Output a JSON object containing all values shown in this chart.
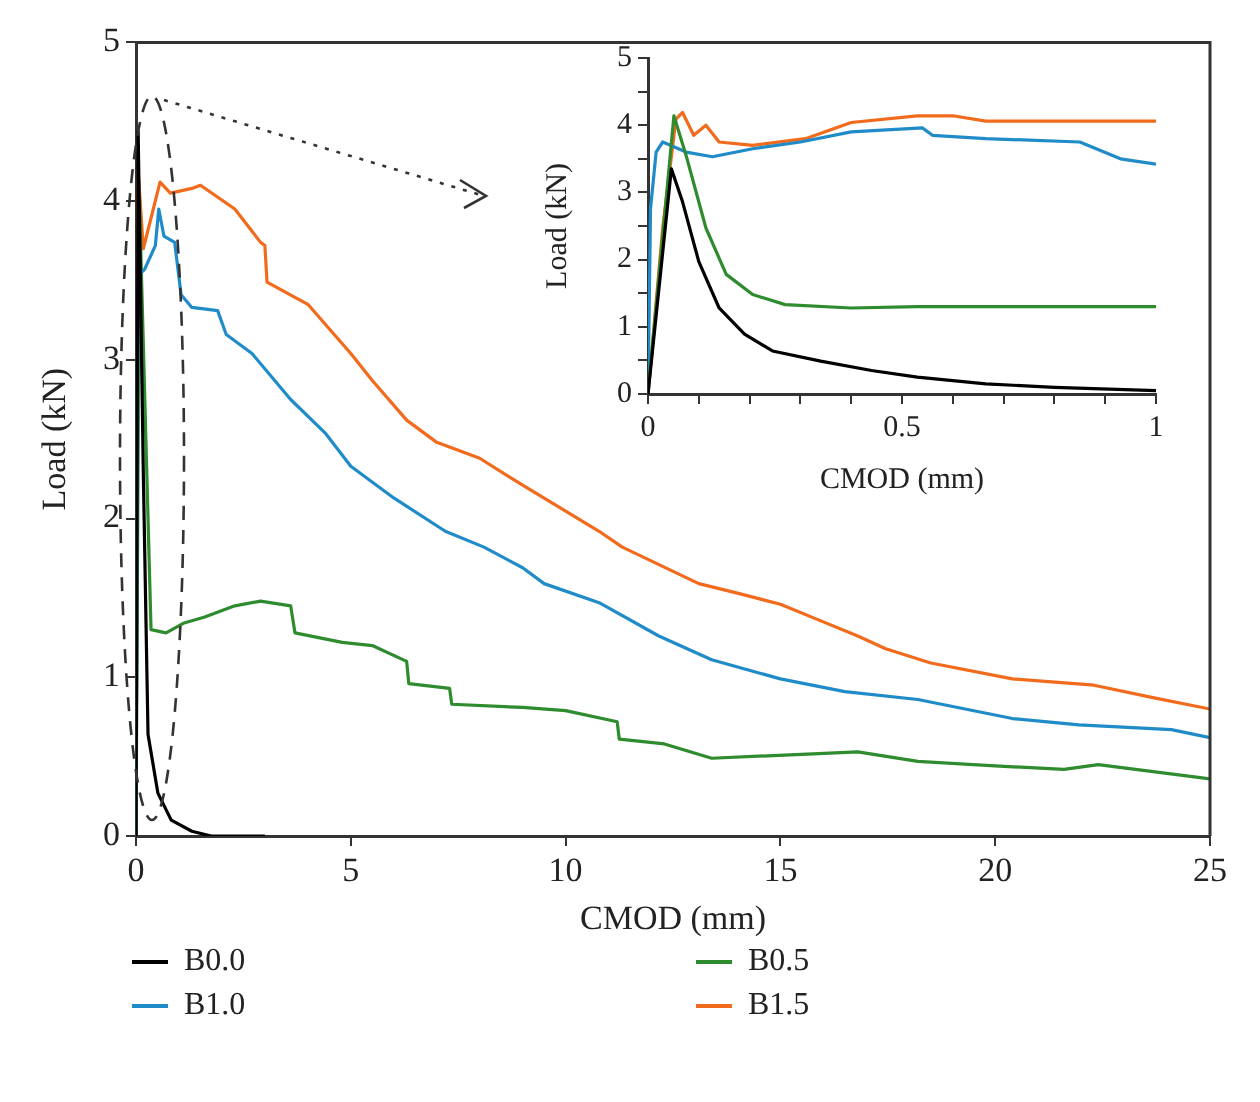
{
  "chart_data": [
    {
      "type": "line",
      "xlabel": "CMOD (mm)",
      "ylabel": "Load (kN)",
      "xlim": [
        0,
        25
      ],
      "xticks": [
        0,
        5,
        10,
        15,
        20,
        25
      ],
      "ylim": [
        0,
        5
      ],
      "yticks": [
        0,
        1,
        2,
        3,
        4,
        5
      ],
      "grid": false,
      "legend": "bottom",
      "marker": "none",
      "line_style": "solid",
      "series": [
        {
          "name": "B0.0",
          "color": "#000000",
          "x": [
            0,
            0.05,
            0.17,
            0.28,
            0.51,
            0.82,
            1.3,
            1.75,
            3
          ],
          "values": [
            0,
            4.44,
            2.29,
            0.64,
            0.27,
            0.1,
            0.03,
            0,
            0
          ]
        },
        {
          "name": "B1.0",
          "color": "#1f8bc9",
          "x": [
            0,
            0.05,
            0.2,
            0.45,
            0.53,
            0.65,
            0.9,
            1.05,
            1.3,
            1.9,
            2.1,
            2.7,
            3.6,
            4.4,
            5.0,
            6.0,
            7.2,
            8.1,
            9.0,
            9.5,
            10.78,
            12.17,
            13.4,
            15.0,
            16.5,
            18.2,
            20.4,
            21.95,
            24.1,
            25
          ],
          "values": [
            0,
            3.53,
            3.57,
            3.72,
            3.95,
            3.78,
            3.74,
            3.41,
            3.33,
            3.31,
            3.16,
            3.04,
            2.75,
            2.54,
            2.33,
            2.13,
            1.92,
            1.82,
            1.69,
            1.59,
            1.47,
            1.26,
            1.11,
            0.99,
            0.91,
            0.86,
            0.74,
            0.7,
            0.67,
            0.62
          ]
        },
        {
          "name": "B0.5",
          "color": "#2e8b2e",
          "x": [
            0,
            0.08,
            0.35,
            0.7,
            1.1,
            1.6,
            2.3,
            2.9,
            3.6,
            3.7,
            4.8,
            5.5,
            6.3,
            6.35,
            7.3,
            7.35,
            9.0,
            10.0,
            11.2,
            11.25,
            12.3,
            13.4,
            15.1,
            16.8,
            18.2,
            20.1,
            21.6,
            22.4,
            25
          ],
          "values": [
            0,
            4.0,
            1.3,
            1.28,
            1.34,
            1.38,
            1.45,
            1.48,
            1.45,
            1.28,
            1.22,
            1.2,
            1.1,
            0.96,
            0.93,
            0.83,
            0.81,
            0.79,
            0.72,
            0.61,
            0.58,
            0.49,
            0.51,
            0.53,
            0.47,
            0.44,
            0.42,
            0.45,
            0.36
          ]
        },
        {
          "name": "B1.5",
          "color": "#f26b1d",
          "x": [
            0,
            0.05,
            0.17,
            0.56,
            0.8,
            1.3,
            1.5,
            2.3,
            2.9,
            3.0,
            3.05,
            4.0,
            5.0,
            5.5,
            6.3,
            7.0,
            8.0,
            9.0,
            10.78,
            11.32,
            13.1,
            14.0,
            15.0,
            15.9,
            16.8,
            17.45,
            18.5,
            20.4,
            22.3,
            23.7,
            25
          ],
          "values": [
            0,
            4.19,
            3.7,
            4.12,
            4.05,
            4.08,
            4.1,
            3.95,
            3.74,
            3.72,
            3.49,
            3.35,
            3.04,
            2.87,
            2.62,
            2.48,
            2.38,
            2.21,
            1.92,
            1.82,
            1.59,
            1.53,
            1.46,
            1.36,
            1.26,
            1.18,
            1.09,
            0.99,
            0.95,
            0.87,
            0.8
          ]
        }
      ]
    },
    {
      "type": "line",
      "xlabel": "CMOD (mm)",
      "ylabel": "Load (kN)",
      "xlim": [
        0,
        1
      ],
      "xticks": [
        0,
        {
          "value": 0.1,
          "label": null
        },
        {
          "value": 0.2,
          "label": null
        },
        {
          "value": 0.3,
          "label": null
        },
        {
          "value": 0.4,
          "label": null
        },
        0.5,
        {
          "value": 0.6,
          "label": null
        },
        {
          "value": 0.7,
          "label": null
        },
        {
          "value": 0.8,
          "label": null
        },
        {
          "value": 0.9,
          "label": null
        },
        1
      ],
      "ylim": [
        0,
        5
      ],
      "yticks": [
        0,
        {
          "value": 0.5,
          "label": null
        },
        1,
        {
          "value": 1.5,
          "label": null
        },
        2,
        {
          "value": 2.5,
          "label": null
        },
        3,
        {
          "value": 3.5,
          "label": null
        },
        4,
        {
          "value": 4.5,
          "label": null
        },
        5
      ],
      "grid": false,
      "marker": "none",
      "line_style": "solid",
      "series": [
        {
          "color": "#000000",
          "x": [
            0,
            0.046,
            0.068,
            0.1,
            0.14,
            0.19,
            0.245,
            0.34,
            0.44,
            0.53,
            0.665,
            0.8,
            1
          ],
          "values": [
            0,
            3.35,
            2.86,
            1.97,
            1.28,
            0.89,
            0.64,
            0.49,
            0.35,
            0.25,
            0.15,
            0.1,
            0.05
          ]
        },
        {
          "color": "#2e8b2e",
          "x": [
            0,
            0.051,
            0.075,
            0.114,
            0.154,
            0.206,
            0.27,
            0.4,
            0.53,
            1
          ],
          "values": [
            0,
            4.14,
            3.55,
            2.47,
            1.78,
            1.48,
            1.33,
            1.28,
            1.3,
            1.3
          ]
        },
        {
          "color": "#1f8bc9",
          "x": [
            0,
            0.005,
            0.016,
            0.029,
            0.075,
            0.127,
            0.206,
            0.3,
            0.4,
            0.54,
            0.56,
            0.665,
            0.85,
            0.93,
            1
          ],
          "values": [
            0,
            2.76,
            3.6,
            3.75,
            3.6,
            3.53,
            3.65,
            3.75,
            3.9,
            3.96,
            3.85,
            3.8,
            3.75,
            3.5,
            3.42
          ]
        },
        {
          "color": "#f26b1d",
          "x": [
            0,
            0.029,
            0.055,
            0.068,
            0.09,
            0.114,
            0.14,
            0.206,
            0.31,
            0.4,
            0.53,
            0.6,
            0.665,
            1
          ],
          "values": [
            0,
            2.47,
            4.09,
            4.19,
            3.85,
            4.0,
            3.75,
            3.7,
            3.8,
            4.04,
            4.14,
            4.14,
            4.06,
            4.06
          ]
        }
      ]
    }
  ]
}
